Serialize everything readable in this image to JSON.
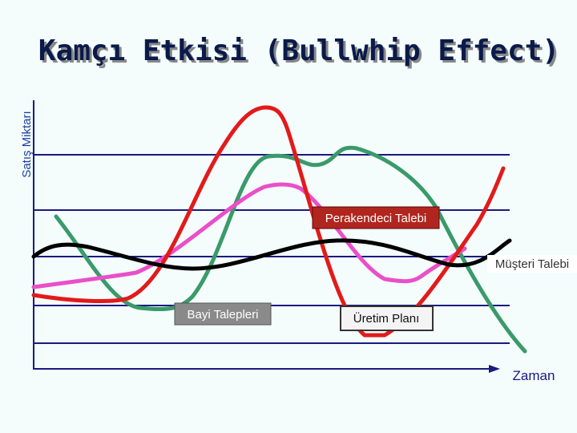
{
  "title": "Kamçı Etkisi (Bullwhip Effect)",
  "y_axis_label": "Satış Miktarı",
  "x_axis_label": "Zaman",
  "labels": {
    "retailer": "Perakendeci Talebi",
    "customer": "Müşteri Talebi",
    "dealer": "Bayi Talepleri",
    "production": "Üretim Planı"
  }
}
